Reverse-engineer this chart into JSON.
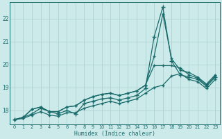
{
  "xlabel": "Humidex (Indice chaleur)",
  "bg_color": "#cceaea",
  "grid_color": "#aacccc",
  "line_color": "#1a6b6b",
  "xlim": [
    -0.5,
    23.5
  ],
  "ylim": [
    17.4,
    22.7
  ],
  "yticks": [
    18,
    19,
    20,
    21,
    22
  ],
  "xticks": [
    0,
    1,
    2,
    3,
    4,
    5,
    6,
    7,
    8,
    9,
    10,
    11,
    12,
    13,
    14,
    15,
    16,
    17,
    18,
    19,
    20,
    21,
    22,
    23
  ],
  "series": {
    "line_main": [
      17.6,
      17.7,
      17.85,
      18.1,
      17.95,
      17.85,
      18.0,
      17.85,
      18.3,
      18.4,
      18.5,
      18.55,
      18.45,
      18.55,
      18.65,
      18.95,
      21.2,
      22.5,
      20.15,
      19.55,
      19.45,
      19.35,
      19.05,
      19.45
    ],
    "line_upper": [
      17.6,
      17.7,
      18.05,
      18.15,
      17.95,
      17.95,
      18.15,
      18.2,
      18.45,
      18.6,
      18.7,
      18.75,
      18.65,
      18.75,
      18.85,
      19.1,
      20.35,
      22.2,
      20.25,
      19.75,
      19.65,
      19.45,
      19.15,
      19.55
    ],
    "line_mid": [
      17.6,
      17.7,
      18.05,
      18.15,
      17.95,
      17.95,
      18.15,
      18.2,
      18.45,
      18.6,
      18.7,
      18.75,
      18.65,
      18.75,
      18.85,
      19.1,
      19.95,
      19.95,
      19.95,
      19.85,
      19.55,
      19.4,
      19.1,
      19.5
    ],
    "line_lower": [
      17.6,
      17.65,
      17.8,
      17.95,
      17.8,
      17.75,
      17.9,
      17.9,
      18.1,
      18.2,
      18.3,
      18.4,
      18.3,
      18.4,
      18.5,
      18.75,
      19.0,
      19.1,
      19.5,
      19.6,
      19.35,
      19.25,
      18.95,
      19.35
    ]
  }
}
